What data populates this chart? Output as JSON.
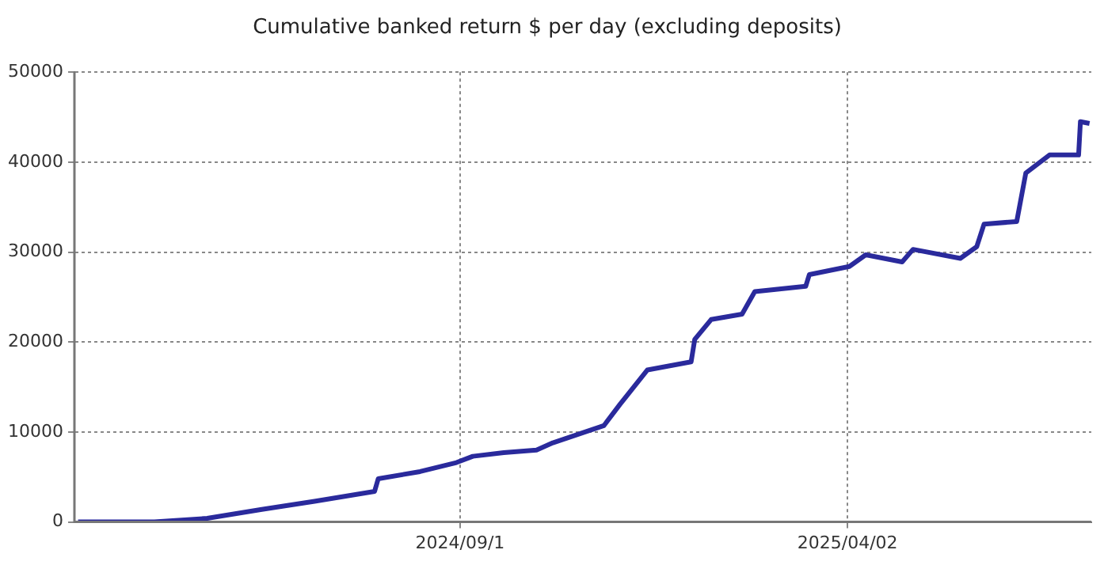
{
  "chart_data": {
    "type": "line",
    "title": "Cumulative banked return $ per day (excluding deposits)",
    "x": [
      "2024-02-04",
      "2024-03-17",
      "2024-04-15",
      "2024-05-15",
      "2024-06-13",
      "2024-07-16",
      "2024-07-18",
      "2024-08-10",
      "2024-08-30",
      "2024-09-08",
      "2024-09-25",
      "2024-10-13",
      "2024-10-22",
      "2024-11-19",
      "2024-11-28",
      "2024-12-13",
      "2025-01-06",
      "2025-01-08",
      "2025-01-17",
      "2025-02-03",
      "2025-02-10",
      "2025-03-10",
      "2025-03-12",
      "2025-04-03",
      "2025-04-12",
      "2025-05-02",
      "2025-05-08",
      "2025-06-03",
      "2025-06-12",
      "2025-06-16",
      "2025-07-04",
      "2025-07-09",
      "2025-07-22",
      "2025-08-07",
      "2025-08-08",
      "2025-08-13"
    ],
    "series": [
      {
        "color": "#2a2a9c",
        "values": [
          0,
          0,
          400,
          1400,
          2300,
          3400,
          4800,
          5600,
          6600,
          7300,
          7700,
          8000,
          8800,
          10700,
          13100,
          16900,
          17800,
          20300,
          22500,
          23100,
          25600,
          26200,
          27500,
          28400,
          29700,
          28900,
          30300,
          29300,
          30600,
          33100,
          33400,
          38800,
          40800,
          40800,
          44500,
          44300
        ]
      }
    ],
    "xlim": [
      "2024-02-02",
      "2025-08-14"
    ],
    "xticks": [
      {
        "value": "2024-09-01",
        "label": "2024/09/1"
      },
      {
        "value": "2025-04-02",
        "label": "2025/04/02"
      }
    ],
    "ylim": [
      0,
      50000
    ],
    "yticks": [
      0,
      10000,
      20000,
      30000,
      40000,
      50000
    ],
    "grid": true,
    "legend": false,
    "marker": "none",
    "line_style": "solid"
  }
}
